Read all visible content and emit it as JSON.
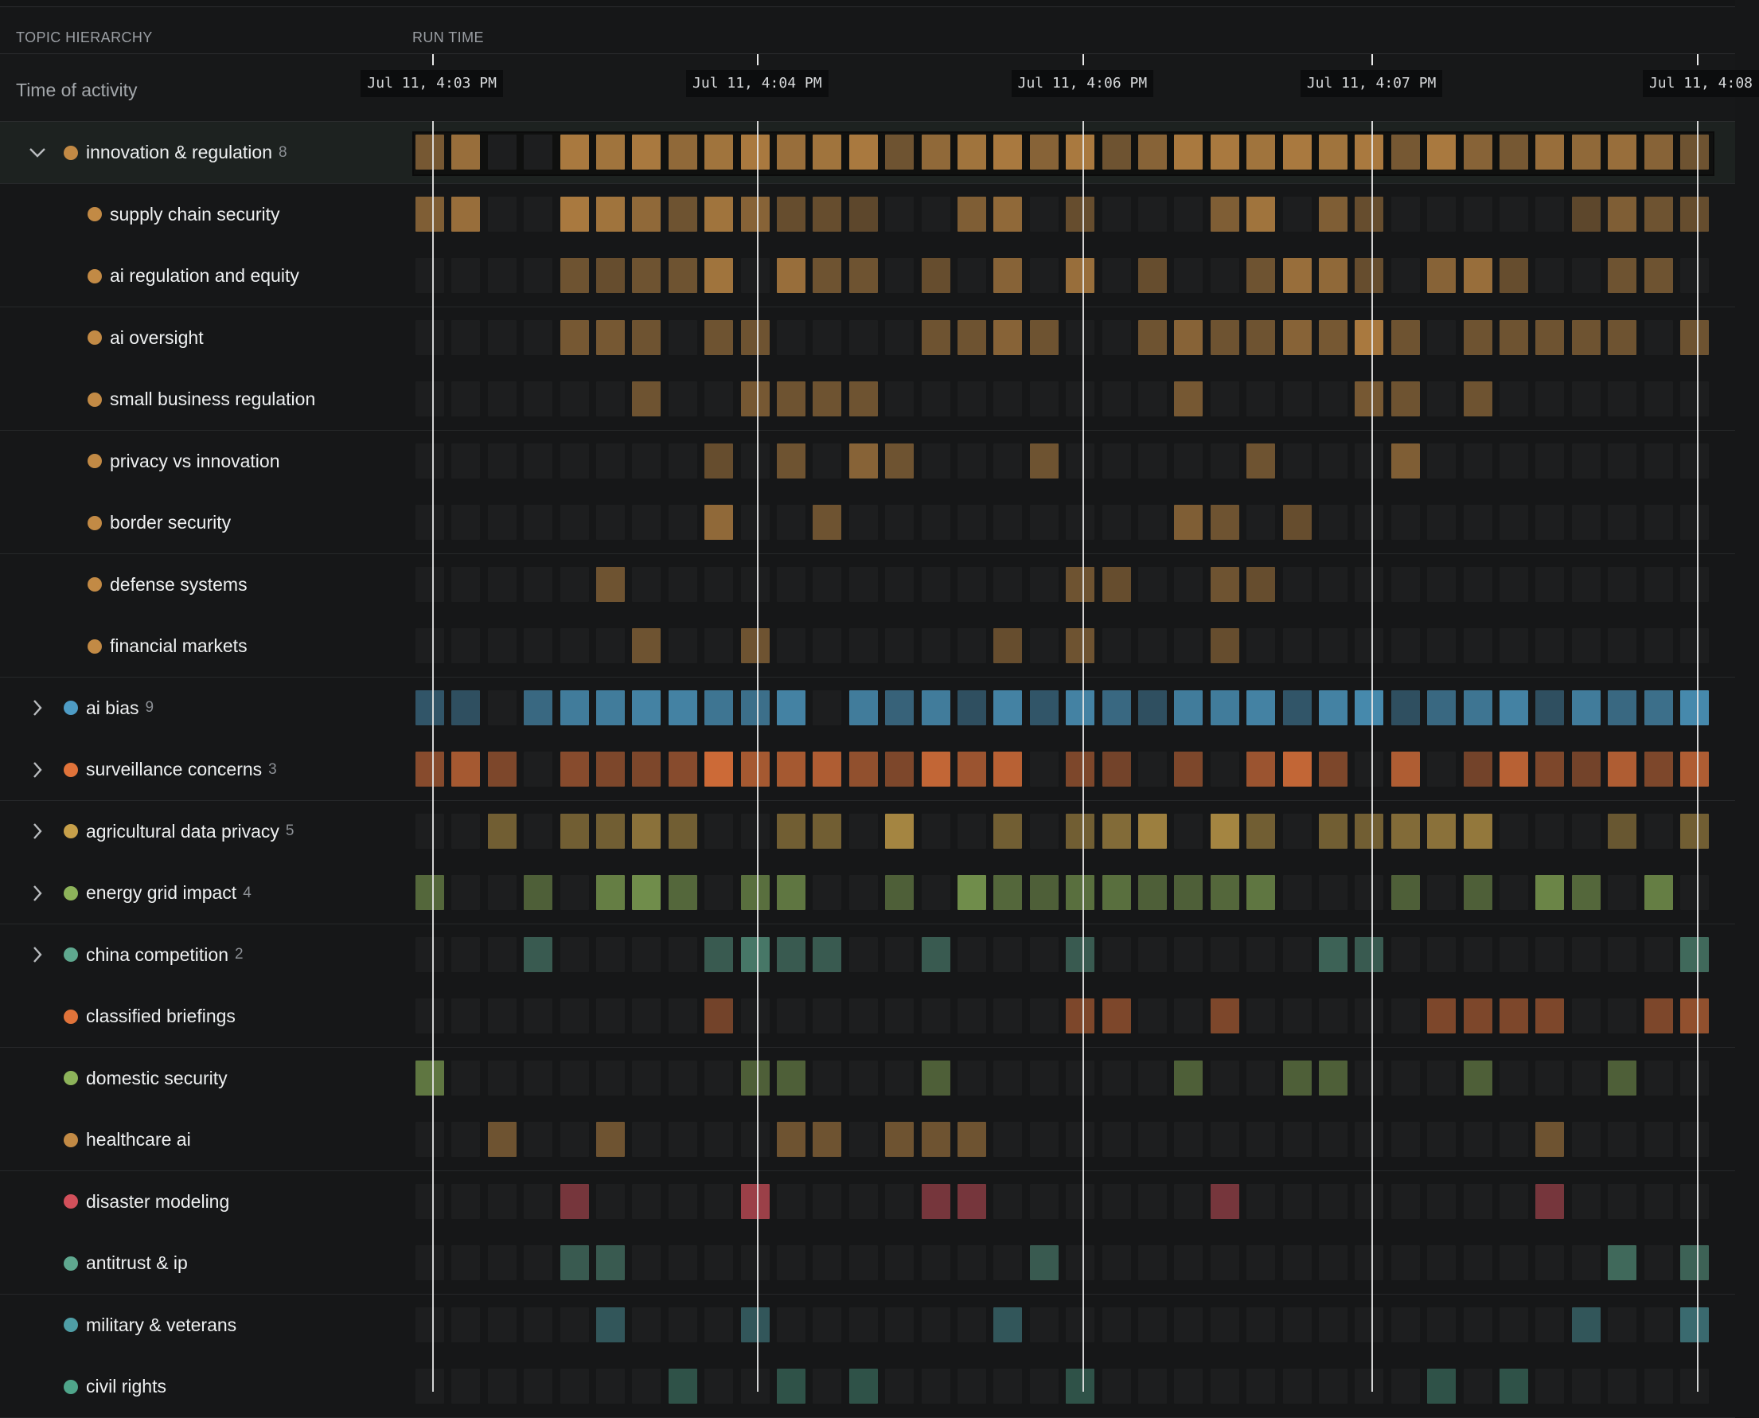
{
  "header": {
    "topic_hierarchy_label": "TOPIC HIERARCHY",
    "run_time_label": "RUN TIME"
  },
  "timeline": {
    "row_label": "Time of activity",
    "ticks": [
      {
        "label": "Jul 11, 4:03 PM",
        "slot": 0.5
      },
      {
        "label": "Jul 11, 4:04 PM",
        "slot": 9.5
      },
      {
        "label": "Jul 11, 4:06 PM",
        "slot": 18.5
      },
      {
        "label": "Jul 11, 4:07 PM",
        "slot": 26.5
      },
      {
        "label": "Jul 11, 4:08",
        "slot": 35.5
      }
    ],
    "slot_count": 36
  },
  "topics": [
    {
      "name": "innovation & regulation",
      "count": "8",
      "color": "#c28a45",
      "level": 0,
      "expandable": true,
      "expanded": true,
      "selected": true,
      "cells": [
        0.55,
        0.75,
        0,
        0,
        0.85,
        0.8,
        0.85,
        0.7,
        0.8,
        0.85,
        0.75,
        0.8,
        0.85,
        0.5,
        0.7,
        0.8,
        0.85,
        0.65,
        0.85,
        0.5,
        0.65,
        0.85,
        0.85,
        0.8,
        0.85,
        0.8,
        0.85,
        0.55,
        0.85,
        0.65,
        0.55,
        0.75,
        0.7,
        0.75,
        0.65,
        0.5
      ]
    },
    {
      "name": "supply chain security",
      "count": "",
      "color": "#c28a45",
      "level": 1,
      "expandable": false,
      "cells": [
        0.6,
        0.75,
        0,
        0,
        0.85,
        0.8,
        0.7,
        0.5,
        0.8,
        0.65,
        0.45,
        0.45,
        0.4,
        0,
        0,
        0.6,
        0.7,
        0,
        0.45,
        0,
        0,
        0,
        0.6,
        0.8,
        0,
        0.6,
        0.45,
        0,
        0,
        0,
        0,
        0,
        0.4,
        0.6,
        0.5,
        0.45
      ]
    },
    {
      "name": "ai regulation and equity",
      "count": "",
      "color": "#c28a45",
      "level": 1,
      "expandable": false,
      "cells": [
        0,
        0,
        0,
        0,
        0.5,
        0.45,
        0.5,
        0.5,
        0.8,
        0,
        0.75,
        0.5,
        0.5,
        0,
        0.45,
        0,
        0.65,
        0,
        0.75,
        0,
        0.45,
        0,
        0,
        0.5,
        0.75,
        0.7,
        0.45,
        0,
        0.65,
        0.75,
        0.45,
        0,
        0,
        0.5,
        0.5,
        0
      ]
    },
    {
      "name": "ai oversight",
      "count": "",
      "color": "#c28a45",
      "level": 1,
      "expandable": false,
      "cells": [
        0,
        0,
        0,
        0,
        0.55,
        0.55,
        0.5,
        0,
        0.5,
        0.5,
        0,
        0,
        0,
        0,
        0.5,
        0.5,
        0.65,
        0.5,
        0,
        0,
        0.5,
        0.65,
        0.5,
        0.5,
        0.65,
        0.55,
        0.85,
        0.5,
        0,
        0.5,
        0.5,
        0.5,
        0.5,
        0.5,
        0,
        0.5
      ]
    },
    {
      "name": "small business regulation",
      "count": "",
      "color": "#c28a45",
      "level": 1,
      "expandable": false,
      "cells": [
        0,
        0,
        0,
        0,
        0,
        0,
        0.5,
        0,
        0,
        0.55,
        0.5,
        0.5,
        0.5,
        0,
        0,
        0,
        0,
        0,
        0,
        0,
        0,
        0.55,
        0,
        0,
        0,
        0,
        0.55,
        0.5,
        0,
        0.5,
        0,
        0,
        0,
        0,
        0,
        0
      ]
    },
    {
      "name": "privacy vs innovation",
      "count": "",
      "color": "#c28a45",
      "level": 1,
      "expandable": false,
      "cells": [
        0,
        0,
        0,
        0,
        0,
        0,
        0,
        0,
        0.45,
        0,
        0.5,
        0,
        0.65,
        0.5,
        0,
        0,
        0,
        0.5,
        0,
        0,
        0,
        0,
        0,
        0.5,
        0,
        0,
        0,
        0.6,
        0,
        0,
        0,
        0,
        0,
        0,
        0,
        0
      ]
    },
    {
      "name": "border security",
      "count": "",
      "color": "#c28a45",
      "level": 1,
      "expandable": false,
      "cells": [
        0,
        0,
        0,
        0,
        0,
        0,
        0,
        0,
        0.7,
        0,
        0,
        0.5,
        0,
        0,
        0,
        0,
        0,
        0,
        0,
        0,
        0,
        0.6,
        0.5,
        0,
        0.45,
        0,
        0,
        0,
        0,
        0,
        0,
        0,
        0,
        0,
        0,
        0
      ]
    },
    {
      "name": "defense systems",
      "count": "",
      "color": "#c28a45",
      "level": 1,
      "expandable": false,
      "cells": [
        0,
        0,
        0,
        0,
        0,
        0.5,
        0,
        0,
        0,
        0,
        0,
        0,
        0,
        0,
        0,
        0,
        0,
        0,
        0.5,
        0.45,
        0,
        0,
        0.5,
        0.45,
        0,
        0,
        0,
        0,
        0,
        0,
        0,
        0,
        0,
        0,
        0,
        0
      ]
    },
    {
      "name": "financial markets",
      "count": "",
      "color": "#c28a45",
      "level": 1,
      "expandable": false,
      "cells": [
        0,
        0,
        0,
        0,
        0,
        0,
        0.5,
        0,
        0,
        0.5,
        0,
        0,
        0,
        0,
        0,
        0,
        0.45,
        0,
        0.5,
        0,
        0,
        0,
        0.45,
        0,
        0,
        0,
        0,
        0,
        0,
        0,
        0,
        0,
        0,
        0,
        0,
        0
      ]
    },
    {
      "name": "ai bias",
      "count": "9",
      "color": "#4e9cc5",
      "level": 0,
      "expandable": true,
      "expanded": false,
      "cells": [
        0.45,
        0.4,
        0,
        0.6,
        0.75,
        0.75,
        0.8,
        0.8,
        0.7,
        0.65,
        0.8,
        0,
        0.75,
        0.55,
        0.75,
        0.4,
        0.8,
        0.45,
        0.8,
        0.6,
        0.4,
        0.75,
        0.75,
        0.8,
        0.45,
        0.8,
        0.85,
        0.4,
        0.6,
        0.7,
        0.8,
        0.4,
        0.75,
        0.6,
        0.65,
        0.85
      ]
    },
    {
      "name": "surveillance concerns",
      "count": "3",
      "color": "#e0733a",
      "level": 0,
      "expandable": true,
      "expanded": false,
      "cells": [
        0.55,
        0.7,
        0.5,
        0,
        0.55,
        0.5,
        0.5,
        0.55,
        0.9,
        0.7,
        0.7,
        0.75,
        0.6,
        0.5,
        0.85,
        0.65,
        0.8,
        0,
        0.5,
        0.45,
        0,
        0.5,
        0,
        0.65,
        0.85,
        0.5,
        0,
        0.75,
        0,
        0.45,
        0.8,
        0.5,
        0.45,
        0.75,
        0.5,
        0.75
      ]
    },
    {
      "name": "agricultural data privacy",
      "count": "5",
      "color": "#c7a04a",
      "level": 0,
      "expandable": true,
      "expanded": false,
      "cells": [
        0,
        0,
        0.5,
        0,
        0.5,
        0.5,
        0.65,
        0.5,
        0,
        0,
        0.5,
        0.5,
        0,
        0.8,
        0,
        0,
        0.5,
        0,
        0.5,
        0.6,
        0.75,
        0,
        0.8,
        0.5,
        0,
        0.5,
        0.5,
        0.6,
        0.65,
        0.7,
        0,
        0,
        0,
        0.45,
        0,
        0.5
      ]
    },
    {
      "name": "energy grid impact",
      "count": "4",
      "color": "#8db35a",
      "level": 0,
      "expandable": true,
      "expanded": false,
      "cells": [
        0.5,
        0,
        0,
        0.45,
        0,
        0.65,
        0.75,
        0.5,
        0,
        0.55,
        0.6,
        0,
        0,
        0.45,
        0,
        0.75,
        0.5,
        0.45,
        0.55,
        0.55,
        0.45,
        0.45,
        0.5,
        0.6,
        0,
        0,
        0,
        0.45,
        0,
        0.45,
        0,
        0.7,
        0.5,
        0,
        0.65,
        0
      ]
    },
    {
      "name": "china competition",
      "count": "2",
      "color": "#5fa88f",
      "level": 0,
      "expandable": true,
      "expanded": false,
      "cells": [
        0,
        0,
        0,
        0.45,
        0,
        0,
        0,
        0,
        0.45,
        0.65,
        0.45,
        0.45,
        0,
        0,
        0.45,
        0,
        0,
        0,
        0.45,
        0,
        0,
        0,
        0,
        0,
        0,
        0.5,
        0.45,
        0,
        0,
        0,
        0,
        0,
        0,
        0,
        0,
        0.55
      ]
    },
    {
      "name": "classified briefings",
      "count": "",
      "color": "#e0733a",
      "level": 0,
      "expandable": false,
      "cells": [
        0,
        0,
        0,
        0,
        0,
        0,
        0,
        0,
        0.45,
        0,
        0,
        0,
        0,
        0,
        0,
        0,
        0,
        0,
        0.5,
        0.5,
        0,
        0,
        0.5,
        0,
        0,
        0,
        0,
        0,
        0.5,
        0.5,
        0.5,
        0.5,
        0,
        0,
        0.5,
        0.6
      ]
    },
    {
      "name": "domestic security",
      "count": "",
      "color": "#8db35a",
      "level": 0,
      "expandable": false,
      "cells": [
        0.6,
        0,
        0,
        0,
        0,
        0,
        0,
        0,
        0,
        0.45,
        0.45,
        0,
        0,
        0,
        0.45,
        0,
        0,
        0,
        0,
        0,
        0,
        0.45,
        0,
        0,
        0.45,
        0.45,
        0,
        0,
        0,
        0.45,
        0,
        0,
        0,
        0.45,
        0,
        0
      ]
    },
    {
      "name": "healthcare ai",
      "count": "",
      "color": "#c28a45",
      "level": 0,
      "expandable": false,
      "cells": [
        0,
        0,
        0.5,
        0,
        0,
        0.5,
        0,
        0,
        0,
        0,
        0.5,
        0.5,
        0,
        0.5,
        0.5,
        0.5,
        0,
        0,
        0,
        0,
        0,
        0,
        0,
        0,
        0,
        0,
        0,
        0,
        0,
        0,
        0,
        0.5,
        0,
        0,
        0,
        0
      ]
    },
    {
      "name": "disaster modeling",
      "count": "",
      "color": "#d2505b",
      "level": 0,
      "expandable": false,
      "cells": [
        0,
        0,
        0,
        0,
        0.5,
        0,
        0,
        0,
        0,
        0.7,
        0,
        0,
        0,
        0,
        0.5,
        0.5,
        0,
        0,
        0,
        0,
        0,
        0,
        0.5,
        0,
        0,
        0,
        0,
        0,
        0,
        0,
        0,
        0.5,
        0,
        0,
        0,
        0
      ]
    },
    {
      "name": "antitrust & ip",
      "count": "",
      "color": "#5fa88f",
      "level": 0,
      "expandable": false,
      "cells": [
        0,
        0,
        0,
        0,
        0.45,
        0.45,
        0,
        0,
        0,
        0,
        0,
        0,
        0,
        0,
        0,
        0,
        0,
        0.45,
        0,
        0,
        0,
        0,
        0,
        0,
        0,
        0,
        0,
        0,
        0,
        0,
        0,
        0,
        0,
        0.55,
        0,
        0.5
      ]
    },
    {
      "name": "military & veterans",
      "count": "",
      "color": "#4f9ea6",
      "level": 0,
      "expandable": false,
      "cells": [
        0,
        0,
        0,
        0,
        0,
        0.45,
        0,
        0,
        0,
        0.45,
        0,
        0,
        0,
        0,
        0,
        0,
        0.45,
        0,
        0,
        0,
        0,
        0,
        0,
        0,
        0,
        0,
        0,
        0,
        0,
        0,
        0,
        0,
        0.45,
        0,
        0,
        0.6
      ]
    },
    {
      "name": "civil rights",
      "count": "",
      "color": "#4fa58a",
      "level": 0,
      "expandable": false,
      "cells": [
        0,
        0,
        0,
        0,
        0,
        0,
        0,
        0.4,
        0,
        0,
        0.4,
        0,
        0.4,
        0,
        0,
        0,
        0,
        0,
        0.4,
        0,
        0,
        0,
        0,
        0,
        0,
        0,
        0,
        0,
        0.4,
        0,
        0.4,
        0,
        0,
        0,
        0,
        0
      ]
    }
  ]
}
